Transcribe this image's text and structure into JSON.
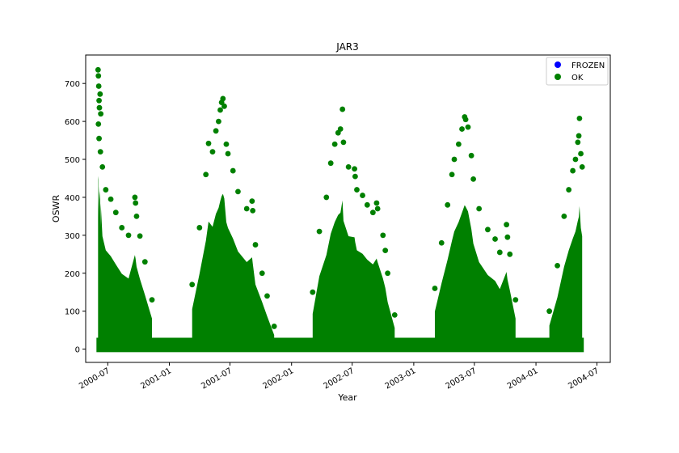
{
  "chart_data": {
    "type": "scatter",
    "title": "JAR3",
    "xlabel": "Year",
    "ylabel": "OSWR",
    "xlim": [
      "2000-04-26",
      "2004-08-10"
    ],
    "ylim": [
      -35,
      775
    ],
    "y_ticks": [
      0,
      100,
      200,
      300,
      400,
      500,
      600,
      700
    ],
    "x_ticks": [
      {
        "date": "2000-07-01",
        "label": "2000-07"
      },
      {
        "date": "2001-01-01",
        "label": "2001-01"
      },
      {
        "date": "2001-07-01",
        "label": "2001-07"
      },
      {
        "date": "2002-01-01",
        "label": "2002-01"
      },
      {
        "date": "2002-07-01",
        "label": "2002-07"
      },
      {
        "date": "2003-01-01",
        "label": "2003-01"
      },
      {
        "date": "2003-07-01",
        "label": "2003-07"
      },
      {
        "date": "2004-01-01",
        "label": "2004-01"
      },
      {
        "date": "2004-07-01",
        "label": "2004-07"
      }
    ],
    "grid": false,
    "legend_position": "top-right",
    "series": [
      {
        "name": "FROZEN",
        "color": "#0000ff",
        "points": []
      },
      {
        "name": "OK",
        "color": "#008000",
        "points": [
          [
            "2000-06-02",
            736
          ],
          [
            "2000-06-03",
            720
          ],
          [
            "2000-06-04",
            693
          ],
          [
            "2000-06-05",
            655
          ],
          [
            "2000-06-06",
            636
          ],
          [
            "2000-06-08",
            672
          ],
          [
            "2000-06-10",
            620
          ],
          [
            "2000-06-03",
            593
          ],
          [
            "2000-06-05",
            555
          ],
          [
            "2000-06-09",
            520
          ],
          [
            "2000-06-15",
            480
          ],
          [
            "2000-06-25",
            420
          ],
          [
            "2000-07-10",
            395
          ],
          [
            "2000-07-25",
            360
          ],
          [
            "2000-08-12",
            320
          ],
          [
            "2000-09-01",
            300
          ],
          [
            "2000-09-20",
            400
          ],
          [
            "2000-09-22",
            385
          ],
          [
            "2000-09-25",
            350
          ],
          [
            "2000-10-05",
            298
          ],
          [
            "2000-10-20",
            230
          ],
          [
            "2000-11-10",
            130
          ],
          [
            "2001-03-10",
            170
          ],
          [
            "2001-04-01",
            320
          ],
          [
            "2001-04-20",
            460
          ],
          [
            "2001-04-28",
            542
          ],
          [
            "2001-05-10",
            520
          ],
          [
            "2001-05-20",
            575
          ],
          [
            "2001-05-28",
            600
          ],
          [
            "2001-06-02",
            630
          ],
          [
            "2001-06-06",
            650
          ],
          [
            "2001-06-10",
            660
          ],
          [
            "2001-06-14",
            640
          ],
          [
            "2001-06-20",
            540
          ],
          [
            "2001-06-25",
            515
          ],
          [
            "2001-07-10",
            470
          ],
          [
            "2001-07-25",
            415
          ],
          [
            "2001-08-20",
            370
          ],
          [
            "2001-09-05",
            390
          ],
          [
            "2001-09-07",
            365
          ],
          [
            "2001-09-15",
            275
          ],
          [
            "2001-10-05",
            200
          ],
          [
            "2001-10-20",
            140
          ],
          [
            "2001-11-10",
            60
          ],
          [
            "2002-03-05",
            150
          ],
          [
            "2002-03-25",
            310
          ],
          [
            "2002-04-15",
            400
          ],
          [
            "2002-04-28",
            490
          ],
          [
            "2002-05-10",
            540
          ],
          [
            "2002-05-20",
            570
          ],
          [
            "2002-05-27",
            580
          ],
          [
            "2002-06-02",
            632
          ],
          [
            "2002-06-05",
            545
          ],
          [
            "2002-06-20",
            480
          ],
          [
            "2002-07-08",
            475
          ],
          [
            "2002-07-10",
            455
          ],
          [
            "2002-07-15",
            420
          ],
          [
            "2002-08-01",
            405
          ],
          [
            "2002-08-15",
            380
          ],
          [
            "2002-09-01",
            360
          ],
          [
            "2002-09-12",
            385
          ],
          [
            "2002-09-15",
            370
          ],
          [
            "2002-10-01",
            300
          ],
          [
            "2002-10-08",
            260
          ],
          [
            "2002-10-15",
            200
          ],
          [
            "2002-11-05",
            90
          ],
          [
            "2003-03-05",
            160
          ],
          [
            "2003-03-25",
            280
          ],
          [
            "2003-04-12",
            380
          ],
          [
            "2003-04-25",
            460
          ],
          [
            "2003-05-02",
            500
          ],
          [
            "2003-05-15",
            540
          ],
          [
            "2003-05-25",
            580
          ],
          [
            "2003-06-02",
            612
          ],
          [
            "2003-06-05",
            605
          ],
          [
            "2003-06-12",
            585
          ],
          [
            "2003-06-22",
            510
          ],
          [
            "2003-06-28",
            448
          ],
          [
            "2003-07-15",
            370
          ],
          [
            "2003-08-10",
            315
          ],
          [
            "2003-09-01",
            290
          ],
          [
            "2003-09-15",
            255
          ],
          [
            "2003-10-05",
            328
          ],
          [
            "2003-10-08",
            295
          ],
          [
            "2003-10-15",
            250
          ],
          [
            "2003-11-01",
            130
          ],
          [
            "2004-02-10",
            100
          ],
          [
            "2004-03-05",
            220
          ],
          [
            "2004-03-25",
            350
          ],
          [
            "2004-04-08",
            420
          ],
          [
            "2004-04-20",
            470
          ],
          [
            "2004-04-28",
            500
          ],
          [
            "2004-05-05",
            545
          ],
          [
            "2004-05-08",
            562
          ],
          [
            "2004-05-10",
            608
          ],
          [
            "2004-05-14",
            515
          ],
          [
            "2004-05-18",
            480
          ]
        ]
      }
    ]
  }
}
